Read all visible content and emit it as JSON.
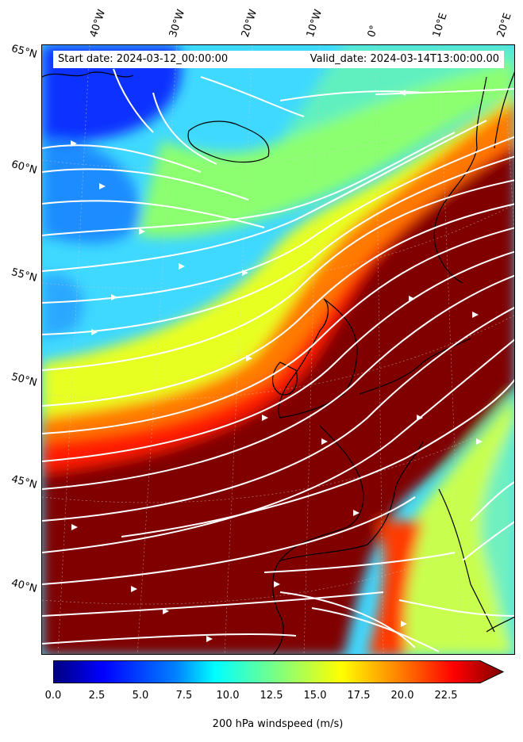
{
  "header": {
    "start_date": "Start date: 2024-03-12_00:00:00",
    "valid_date": "Valid_date: 2024-03-14T13:00:00.00"
  },
  "map": {
    "lon_labels": [
      "40°W",
      "30°W",
      "20°W",
      "10°W",
      "0°",
      "10°E",
      "20°E"
    ],
    "lat_labels": [
      "65°N",
      "60°N",
      "55°N",
      "50°N",
      "45°N",
      "40°N"
    ],
    "streamline_color": "#ffffff",
    "coast_color": "#000000",
    "jet_color": "#800000"
  },
  "colorbar": {
    "colormap": "jet",
    "range": [
      0,
      25
    ],
    "extend": "max",
    "ticks": [
      "0.0",
      "2.5",
      "5.0",
      "7.5",
      "10.0",
      "12.5",
      "15.0",
      "17.5",
      "20.0",
      "22.5"
    ],
    "label": "200 hPa windspeed (m/s)"
  }
}
